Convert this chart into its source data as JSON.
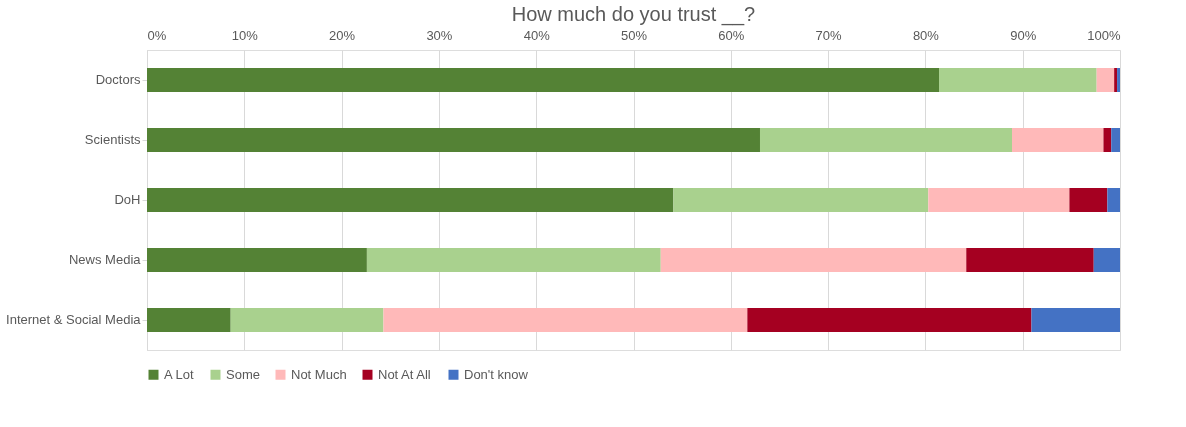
{
  "chart_data": {
    "type": "bar",
    "orientation": "horizontal",
    "stacked": true,
    "title": "How much do you trust __?",
    "categories": [
      "Doctors",
      "Scientists",
      "DoH",
      "News Media",
      "Internet & Social Media"
    ],
    "series": [
      {
        "name": "A Lot",
        "color": "#548235",
        "values": [
          81.4,
          63.0,
          54.1,
          22.6,
          8.6
        ]
      },
      {
        "name": "Some",
        "color": "#a9d18e",
        "values": [
          16.2,
          25.9,
          26.2,
          30.2,
          15.7
        ]
      },
      {
        "name": "Not Much",
        "color": "#ffb9b9",
        "values": [
          1.8,
          9.4,
          14.5,
          31.4,
          37.4
        ]
      },
      {
        "name": "Not At All",
        "color": "#a50021",
        "values": [
          0.3,
          0.8,
          3.9,
          13.1,
          29.2
        ]
      },
      {
        "name": "Don't know",
        "color": "#4472c4",
        "values": [
          0.3,
          0.9,
          1.3,
          2.7,
          9.1
        ]
      }
    ],
    "xlim": [
      0,
      100
    ],
    "xticks": [
      {
        "value": 0,
        "label": "0%"
      },
      {
        "value": 10,
        "label": "10%"
      },
      {
        "value": 20,
        "label": "20%"
      },
      {
        "value": 30,
        "label": "30%"
      },
      {
        "value": 40,
        "label": "40%"
      },
      {
        "value": 50,
        "label": "50%"
      },
      {
        "value": 60,
        "label": "60%"
      },
      {
        "value": 70,
        "label": "70%"
      },
      {
        "value": 80,
        "label": "80%"
      },
      {
        "value": 90,
        "label": "90%"
      },
      {
        "value": 100,
        "label": "100%"
      }
    ],
    "grid": "x",
    "legend": "bottom"
  }
}
